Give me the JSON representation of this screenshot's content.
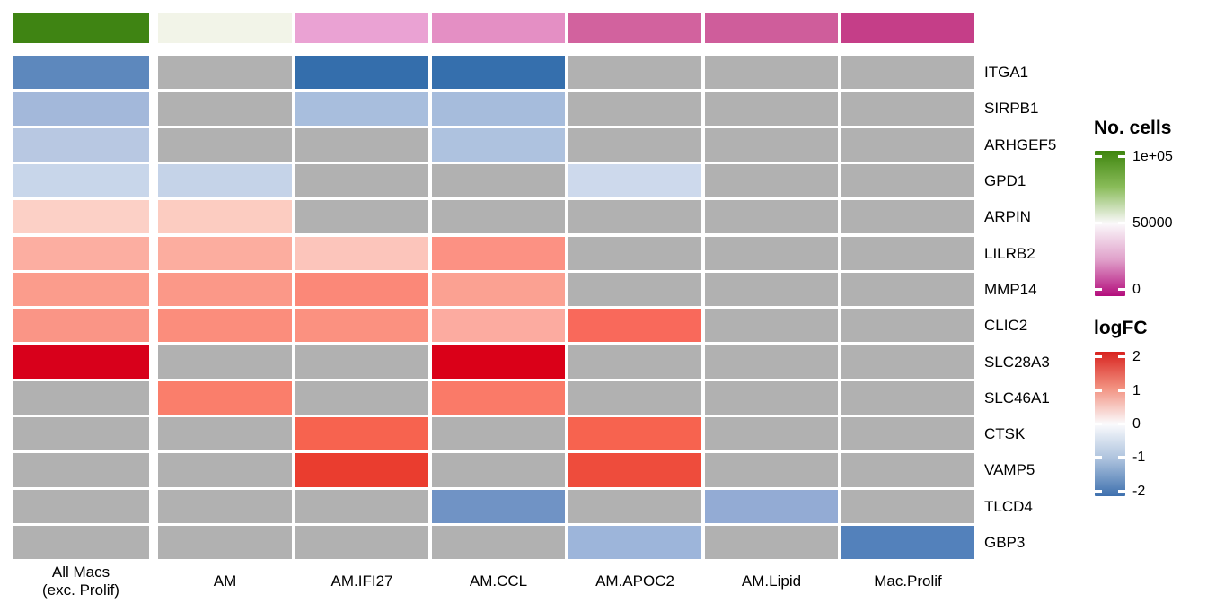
{
  "chart_data": {
    "type": "heatmap",
    "title": "",
    "columns": [
      "All Macs\n(exc. Prolif)",
      "AM",
      "AM.IFI27",
      "AM.CCL",
      "AM.APOC2",
      "AM.Lipid",
      "Mac.Prolif"
    ],
    "rows": [
      "ITGA1",
      "SIRPB1",
      "ARHGEF5",
      "GPD1",
      "ARPIN",
      "LILRB2",
      "MMP14",
      "CLIC2",
      "SLC28A3",
      "SLC46A1",
      "CTSK",
      "VAMP5",
      "TLCD4",
      "GBP3"
    ],
    "na_color": "#b1b1b1",
    "annotation": {
      "name": "No. cells",
      "values": [
        88000,
        52000,
        37000,
        34000,
        25000,
        24000,
        15000
      ],
      "colors": [
        "#3f8413",
        "#f2f4e8",
        "#eaa2d3",
        "#e48fc4",
        "#d2629e",
        "#cf5d9b",
        "#c53e88"
      ]
    },
    "logfc_values": [
      [
        -1.3,
        null,
        -1.9,
        -1.9,
        null,
        null,
        null
      ],
      [
        -0.7,
        null,
        -0.65,
        -0.68,
        null,
        null,
        null
      ],
      [
        -0.55,
        null,
        null,
        -0.62,
        null,
        null,
        null
      ],
      [
        -0.35,
        -0.38,
        null,
        null,
        -0.32,
        null,
        null
      ],
      [
        0.35,
        0.4,
        null,
        null,
        null,
        null,
        null
      ],
      [
        0.62,
        0.63,
        0.43,
        0.88,
        null,
        null,
        null
      ],
      [
        0.78,
        0.82,
        0.98,
        0.74,
        null,
        null,
        null
      ],
      [
        0.84,
        0.93,
        0.9,
        0.65,
        1.25,
        null,
        null
      ],
      [
        2.4,
        null,
        null,
        2.4,
        null,
        null,
        null
      ],
      [
        null,
        1.1,
        null,
        1.12,
        null,
        null,
        null
      ],
      [
        null,
        null,
        1.35,
        null,
        1.35,
        null,
        null
      ],
      [
        null,
        null,
        1.8,
        null,
        1.6,
        null,
        null
      ],
      [
        null,
        null,
        null,
        -1.1,
        null,
        -0.82,
        null
      ],
      [
        null,
        null,
        null,
        null,
        -0.75,
        null,
        -1.35
      ]
    ],
    "cells_colors": [
      [
        "#5d88bd",
        null,
        "#346eac",
        "#356fad",
        null,
        null,
        null
      ],
      [
        "#a3b8da",
        null,
        "#a8bedd",
        "#a6bcdc",
        null,
        null,
        null
      ],
      [
        "#b8c8e2",
        null,
        null,
        "#aec2df",
        null,
        null,
        null
      ],
      [
        "#c8d6ea",
        "#c5d3e8",
        null,
        null,
        "#cdd9ec",
        null,
        null
      ],
      [
        "#fcd0c6",
        "#fcccc1",
        null,
        null,
        null,
        null,
        null
      ],
      [
        "#fcaea1",
        "#fcad9f",
        "#fcc5bb",
        "#fc9183",
        null,
        null,
        null
      ],
      [
        "#fb9c8c",
        "#fb9888",
        "#fb8878",
        "#fba192",
        null,
        null,
        null
      ],
      [
        "#fa9586",
        "#fb8d7c",
        "#fb9180",
        "#fcaba0",
        "#f9695b",
        null,
        null
      ],
      [
        "#d8001b",
        null,
        null,
        "#da0018",
        null,
        null,
        null
      ],
      [
        null,
        "#fa7e6b",
        null,
        "#fa7a68",
        null,
        null,
        null
      ],
      [
        null,
        null,
        "#f7634f",
        null,
        "#f7634f",
        null,
        null
      ],
      [
        null,
        null,
        "#ea3d2f",
        null,
        "#ee4c3c",
        null,
        null
      ],
      [
        null,
        null,
        null,
        "#7093c5",
        null,
        "#93abd4",
        null
      ],
      [
        null,
        null,
        null,
        null,
        "#9db5da",
        null,
        "#5381bb"
      ]
    ]
  },
  "legends": {
    "cells": {
      "title": "No. cells",
      "gradient": [
        "#3e850e",
        "#8abc5a",
        "#fbf9fb",
        "#e0a0ca",
        "#b30d7c"
      ],
      "ticks": [
        {
          "label": "1e+05",
          "pos": 0.037
        },
        {
          "label": "50000",
          "pos": 0.494
        },
        {
          "label": "0",
          "pos": 0.951
        }
      ],
      "range": [
        0,
        100000
      ]
    },
    "logfc": {
      "title": "logFC",
      "gradient": [
        "#d8231f",
        "#f29180",
        "#fbfbfd",
        "#a9c0dc",
        "#3e70ae"
      ],
      "ticks": [
        {
          "label": "2",
          "pos": 0.031
        },
        {
          "label": "1",
          "pos": 0.267
        },
        {
          "label": "0",
          "pos": 0.497
        },
        {
          "label": "-1",
          "pos": 0.727
        },
        {
          "label": "-2",
          "pos": 0.963
        }
      ],
      "range": [
        -2,
        2
      ]
    }
  }
}
